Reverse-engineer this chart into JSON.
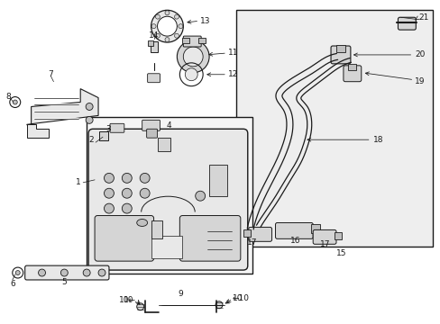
{
  "bg_color": "#ffffff",
  "line_color": "#1a1a1a",
  "fill_light": "#e8e8e8",
  "fill_mid": "#d5d5d5",
  "fill_dark": "#c0c0c0",
  "box_fill": "#eeeeee",
  "figsize": [
    4.89,
    3.6
  ],
  "dpi": 100
}
